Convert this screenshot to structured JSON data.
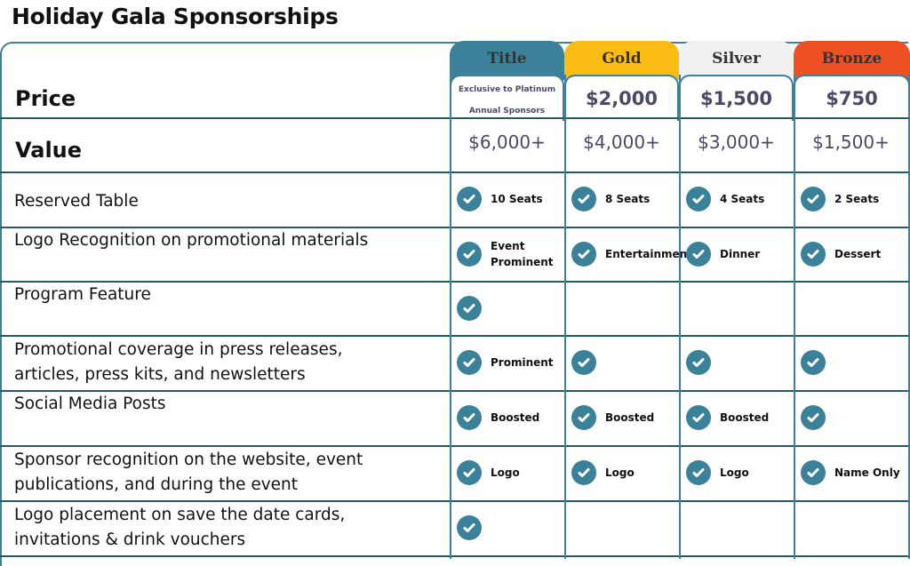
{
  "title": "Holiday Gala Sponsorships",
  "colors": {
    "title": "#3a8199",
    "gold": "#fbbc13",
    "silver": "#f0f1f0",
    "bronze": "#ef5023"
  },
  "tiers": [
    {
      "name": "Title",
      "price": "",
      "note_line1": "Exclusive to Platinum",
      "note_line2": "Annual Sponsors",
      "value": "$6,000+"
    },
    {
      "name": "Gold",
      "price": "$2,000",
      "value": "$4,000+"
    },
    {
      "name": "Silver",
      "price": "$1,500",
      "value": "$3,000+"
    },
    {
      "name": "Bronze",
      "price": "$750",
      "value": "$1,500+"
    }
  ],
  "labels": {
    "price": "Price",
    "value": "Value"
  },
  "rows": [
    {
      "label1": "Reserved Table",
      "label2": "",
      "cells": [
        {
          "c": true,
          "t1": "10 Seats",
          "t2": ""
        },
        {
          "c": true,
          "t1": "8 Seats",
          "t2": ""
        },
        {
          "c": true,
          "t1": "4 Seats",
          "t2": ""
        },
        {
          "c": true,
          "t1": "2 Seats",
          "t2": ""
        }
      ]
    },
    {
      "label1": "Logo Recognition on promotional materials",
      "label2": "",
      "cells": [
        {
          "c": true,
          "t1": "Event",
          "t2": "Prominent"
        },
        {
          "c": true,
          "t1": "Entertainment",
          "t2": ""
        },
        {
          "c": true,
          "t1": "Dinner",
          "t2": ""
        },
        {
          "c": true,
          "t1": "Dessert",
          "t2": ""
        }
      ]
    },
    {
      "label1": "Program Feature",
      "label2": "",
      "cells": [
        {
          "c": true,
          "t1": "",
          "t2": ""
        },
        {
          "c": false
        },
        {
          "c": false
        },
        {
          "c": false
        }
      ]
    },
    {
      "label1": "Promotional coverage in press releases,",
      "label2": "articles, press kits, and newsletters",
      "cells": [
        {
          "c": true,
          "t1": "Prominent",
          "t2": ""
        },
        {
          "c": true,
          "t1": "",
          "t2": ""
        },
        {
          "c": true,
          "t1": "",
          "t2": ""
        },
        {
          "c": true,
          "t1": "",
          "t2": ""
        }
      ]
    },
    {
      "label1": "Social Media Posts",
      "label2": "",
      "cells": [
        {
          "c": true,
          "t1": "Boosted",
          "t2": ""
        },
        {
          "c": true,
          "t1": "Boosted",
          "t2": ""
        },
        {
          "c": true,
          "t1": "Boosted",
          "t2": ""
        },
        {
          "c": true,
          "t1": "",
          "t2": ""
        }
      ]
    },
    {
      "label1": "Sponsor recognition on the website, event",
      "label2": "publications, and during the event",
      "cells": [
        {
          "c": true,
          "t1": "Logo",
          "t2": ""
        },
        {
          "c": true,
          "t1": "Logo",
          "t2": ""
        },
        {
          "c": true,
          "t1": "Logo",
          "t2": ""
        },
        {
          "c": true,
          "t1": "Name Only",
          "t2": ""
        }
      ]
    },
    {
      "label1": "Logo placement on save the date cards,",
      "label2": "invitations & drink vouchers",
      "cells": [
        {
          "c": true,
          "t1": "",
          "t2": ""
        },
        {
          "c": false
        },
        {
          "c": false
        },
        {
          "c": false
        }
      ]
    }
  ]
}
